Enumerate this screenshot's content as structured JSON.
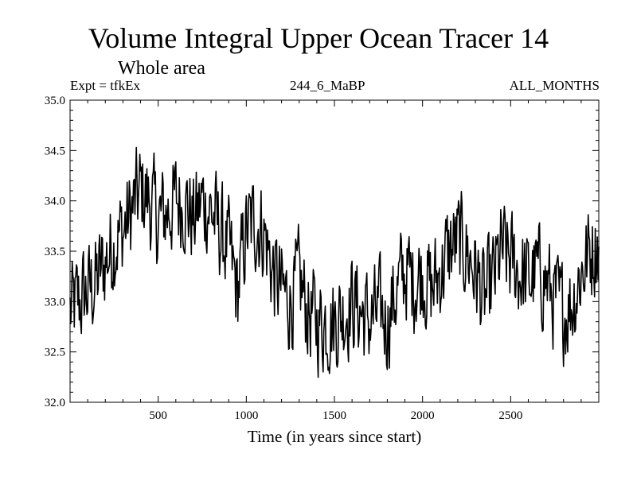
{
  "chart_data": {
    "type": "line",
    "title": "Volume Integral Upper Ocean Tracer 14",
    "subtitle": "Whole area",
    "annotations": {
      "left": "Expt = tfkEx",
      "center": "244_6_MaBP",
      "right": "ALL_MONTHS"
    },
    "xlabel": "Time (in years since start)",
    "ylabel": "",
    "xlim": [
      0,
      3000
    ],
    "ylim": [
      32.0,
      35.0
    ],
    "x_ticks": [
      500,
      1000,
      1500,
      2000,
      2500
    ],
    "y_ticks": [
      32.0,
      32.5,
      33.0,
      33.5,
      34.0,
      34.5,
      35.0
    ],
    "x_tick_labels": [
      "500",
      "1000",
      "1500",
      "2000",
      "2500"
    ],
    "y_tick_labels": [
      "32.0",
      "32.5",
      "33.0",
      "33.5",
      "34.0",
      "34.5",
      "35.0"
    ],
    "grid": false,
    "series": [
      {
        "color": "#000000",
        "x": [
          0,
          50,
          100,
          150,
          200,
          250,
          300,
          350,
          400,
          450,
          500,
          550,
          600,
          650,
          700,
          750,
          800,
          850,
          900,
          950,
          1000,
          1050,
          1100,
          1150,
          1200,
          1250,
          1300,
          1350,
          1400,
          1450,
          1500,
          1550,
          1600,
          1650,
          1700,
          1750,
          1800,
          1850,
          1900,
          1950,
          2000,
          2050,
          2100,
          2150,
          2200,
          2250,
          2300,
          2350,
          2400,
          2450,
          2500,
          2550,
          2600,
          2650,
          2700,
          2750,
          2800,
          2850,
          2900,
          2950,
          3000
        ],
        "y": [
          32.9,
          33.0,
          33.1,
          33.2,
          33.4,
          33.6,
          33.7,
          33.9,
          34.1,
          34.0,
          33.8,
          33.9,
          34.0,
          34.0,
          33.8,
          34.0,
          33.9,
          33.7,
          33.5,
          33.1,
          33.7,
          33.8,
          33.7,
          33.3,
          33.1,
          33.0,
          33.2,
          32.9,
          32.8,
          32.8,
          32.8,
          32.9,
          33.0,
          32.9,
          32.8,
          32.9,
          32.8,
          33.1,
          33.3,
          33.2,
          33.3,
          33.1,
          33.3,
          33.5,
          33.6,
          33.5,
          33.3,
          33.0,
          33.2,
          33.5,
          33.4,
          33.3,
          33.2,
          33.3,
          33.2,
          33.0,
          32.9,
          33.0,
          33.3,
          33.5,
          33.6
        ],
        "variability": 0.5
      }
    ]
  }
}
